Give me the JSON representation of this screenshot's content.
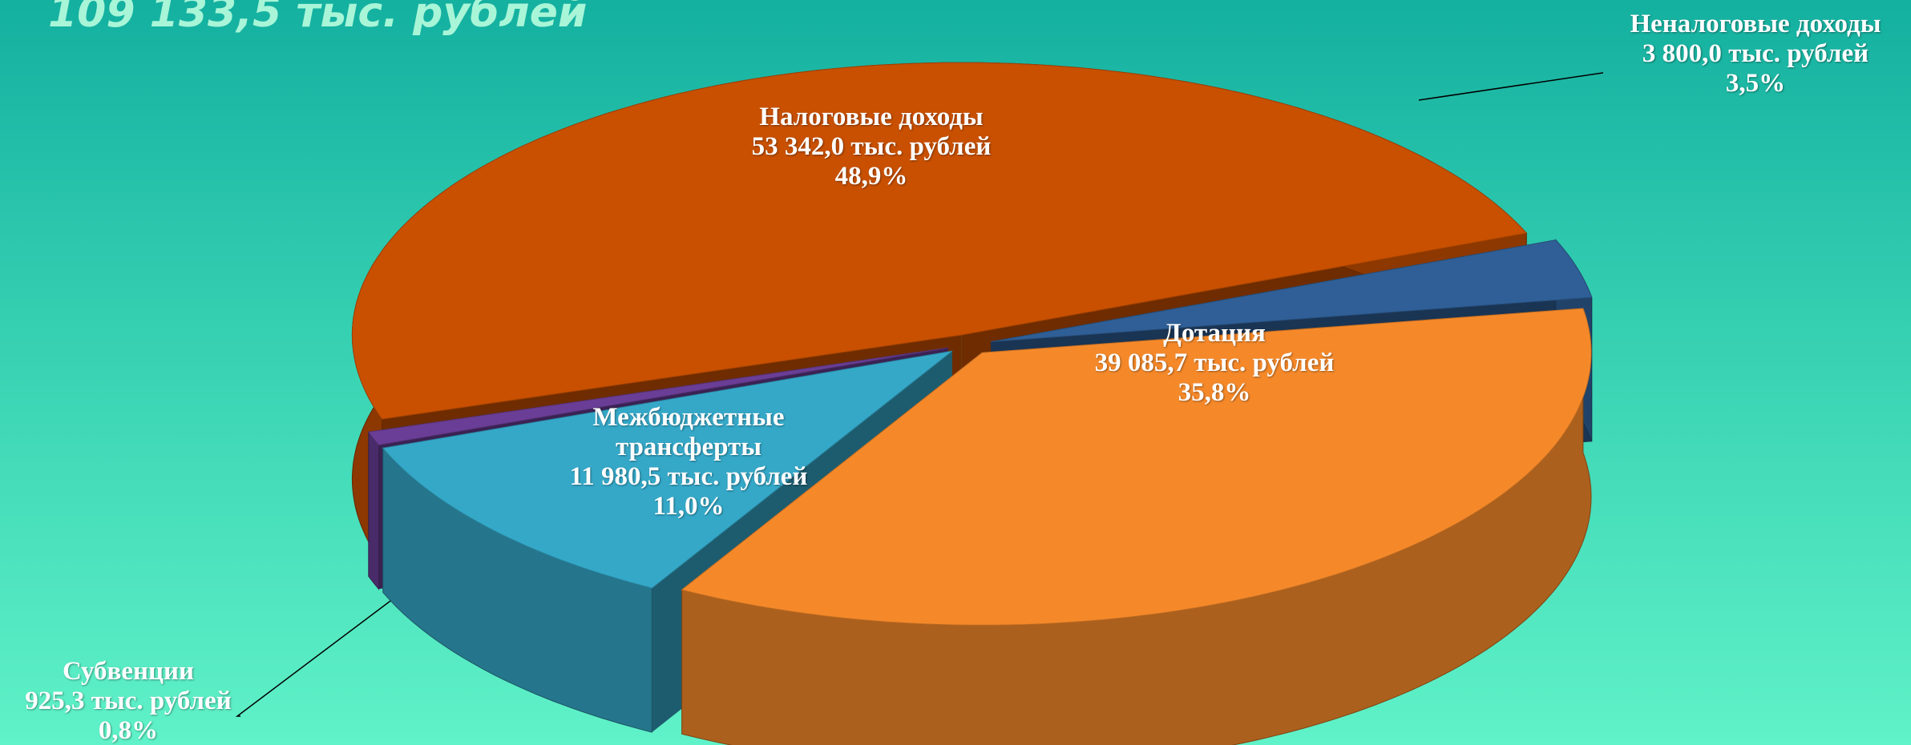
{
  "chart_data": {
    "type": "pie",
    "title": "109 133,5 тыс. рублей",
    "categories": [
      "Налоговые доходы",
      "Неналоговые доходы",
      "Дотация",
      "Межбюджетные трансферты",
      "Субвенции"
    ],
    "details": [
      "53 342,0 тыс. рублей",
      "3 800,0 тыс. рублей",
      "39 085,7 тыс. рублей",
      "11 980,5 тыс. рублей",
      "925,3 тыс. рублей"
    ],
    "values": [
      48.9,
      3.5,
      35.8,
      11.0,
      0.8
    ],
    "value_labels": [
      "48,9%",
      "3,5%",
      "35,8%",
      "11,0%",
      "0,8%"
    ],
    "colors": [
      "#c85000",
      "#2f5f96",
      "#f5892a",
      "#35a8c8",
      "#6a3e96"
    ]
  }
}
